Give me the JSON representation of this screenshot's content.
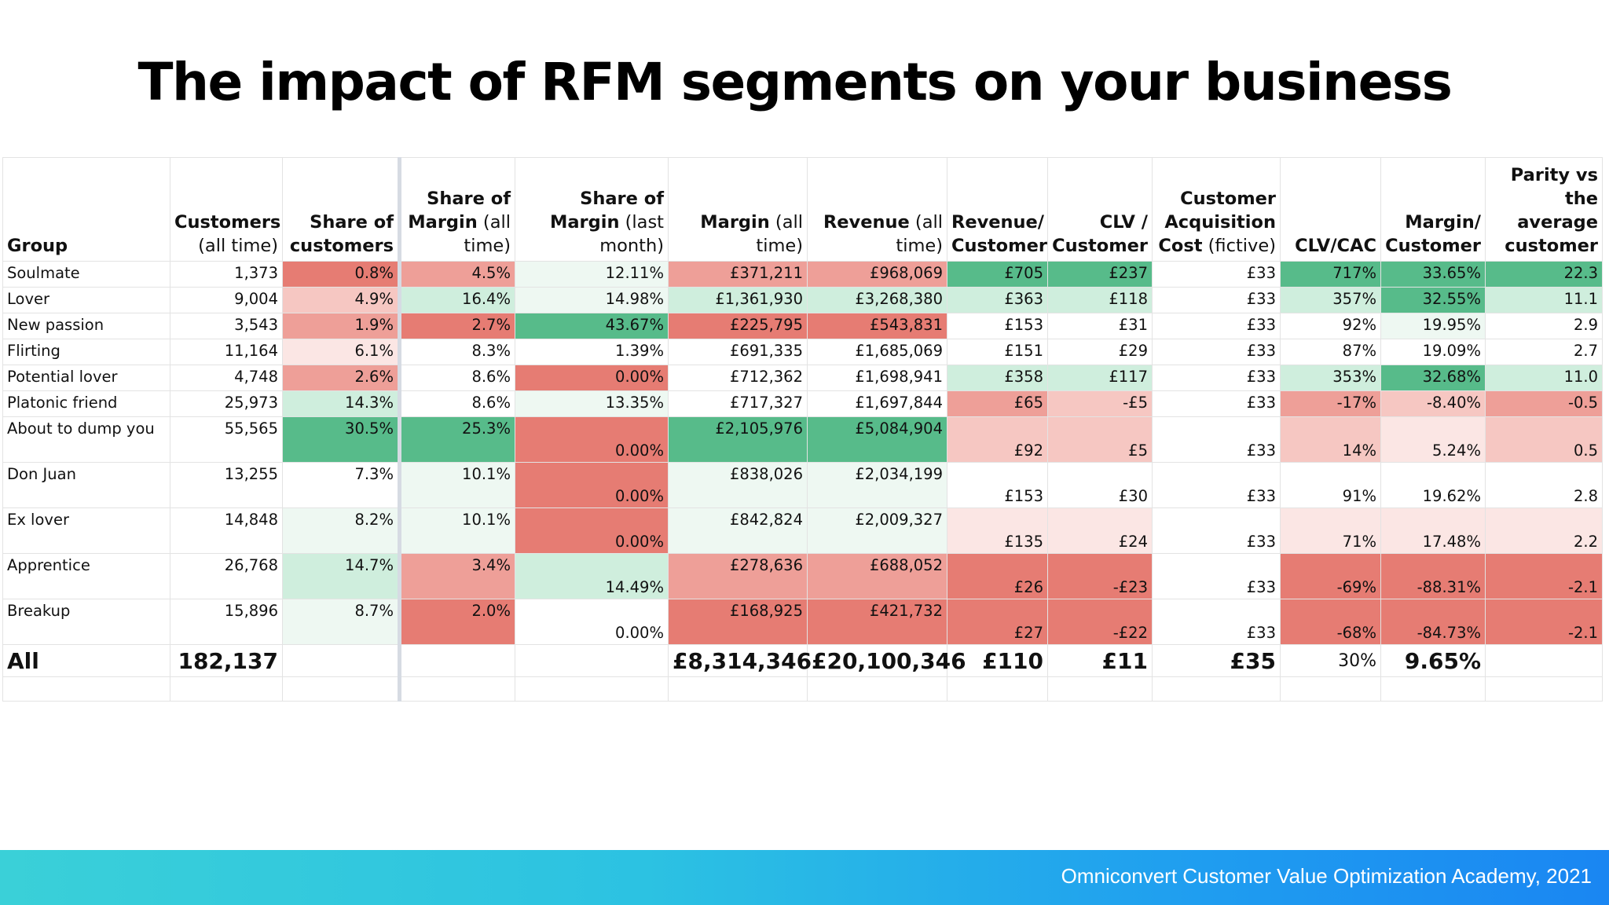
{
  "title": "The impact of RFM segments on your business",
  "footer": "Omniconvert Customer Value Optimization Academy, 2021",
  "palette": {
    "g3": "#57bb8a",
    "g2": "#98d6b4",
    "g1": "#cfeedd",
    "g0": "#eef8f2",
    "r3": "#e67c73",
    "r2": "#ee9f98",
    "r1": "#f6c7c2",
    "r0": "#fbe6e4",
    "w": "#ffffff"
  },
  "chart_data": {
    "type": "table",
    "title": "The impact of RFM segments on your business",
    "headers": [
      {
        "bold": "Group",
        "normal": ""
      },
      {
        "bold": "Customers",
        "normal": "(all time)"
      },
      {
        "bold": "Share of customers",
        "normal": ""
      },
      {
        "bold": "Share of Margin",
        "normal": "(all time)"
      },
      {
        "bold": "Share of Margin",
        "normal": "(last month)"
      },
      {
        "bold": "Margin",
        "normal": "(all time)"
      },
      {
        "bold": "Revenue",
        "normal": "(all time)"
      },
      {
        "bold": "Revenue/ Customer",
        "normal": ""
      },
      {
        "bold": "CLV / Customer",
        "normal": ""
      },
      {
        "bold": "Customer Acquisition Cost",
        "normal": "(fictive)"
      },
      {
        "bold": "CLV/CAC",
        "normal": ""
      },
      {
        "bold": "Margin/ Customer",
        "normal": ""
      },
      {
        "bold": "Parity vs the average customer",
        "normal": ""
      }
    ],
    "rows": [
      {
        "group": "Soulmate",
        "cells": [
          "1,373",
          "0.8%",
          "4.5%",
          "12.11%",
          "£371,211",
          "£968,069",
          "£705",
          "£237",
          "£33",
          "717%",
          "33.65%",
          "22.3"
        ]
      },
      {
        "group": "Lover",
        "cells": [
          "9,004",
          "4.9%",
          "16.4%",
          "14.98%",
          "£1,361,930",
          "£3,268,380",
          "£363",
          "£118",
          "£33",
          "357%",
          "32.55%",
          "11.1"
        ]
      },
      {
        "group": "New passion",
        "cells": [
          "3,543",
          "1.9%",
          "2.7%",
          "43.67%",
          "£225,795",
          "£543,831",
          "£153",
          "£31",
          "£33",
          "92%",
          "19.95%",
          "2.9"
        ]
      },
      {
        "group": "Flirting",
        "cells": [
          "11,164",
          "6.1%",
          "8.3%",
          "1.39%",
          "£691,335",
          "£1,685,069",
          "£151",
          "£29",
          "£33",
          "87%",
          "19.09%",
          "2.7"
        ]
      },
      {
        "group": "Potential lover",
        "cells": [
          "4,748",
          "2.6%",
          "8.6%",
          "0.00%",
          "£712,362",
          "£1,698,941",
          "£358",
          "£117",
          "£33",
          "353%",
          "32.68%",
          "11.0"
        ]
      },
      {
        "group": "Platonic friend",
        "cells": [
          "25,973",
          "14.3%",
          "8.6%",
          "13.35%",
          "£717,327",
          "£1,697,844",
          "£65",
          "-£5",
          "£33",
          "-17%",
          "-8.40%",
          "-0.5"
        ]
      },
      {
        "group": "About to dump you",
        "cells": [
          "55,565",
          "30.5%",
          "25.3%",
          "0.00%",
          "£2,105,976",
          "£5,084,904",
          "£92",
          "£5",
          "£33",
          "14%",
          "5.24%",
          "0.5"
        ]
      },
      {
        "group": "Don Juan",
        "cells": [
          "13,255",
          "7.3%",
          "10.1%",
          "0.00%",
          "£838,026",
          "£2,034,199",
          "£153",
          "£30",
          "£33",
          "91%",
          "19.62%",
          "2.8"
        ]
      },
      {
        "group": "Ex lover",
        "cells": [
          "14,848",
          "8.2%",
          "10.1%",
          "0.00%",
          "£842,824",
          "£2,009,327",
          "£135",
          "£24",
          "£33",
          "71%",
          "17.48%",
          "2.2"
        ]
      },
      {
        "group": "Apprentice",
        "cells": [
          "26,768",
          "14.7%",
          "3.4%",
          "14.49%",
          "£278,636",
          "£688,052",
          "£26",
          "-£23",
          "£33",
          "-69%",
          "-88.31%",
          "-2.1"
        ]
      },
      {
        "group": "Breakup",
        "cells": [
          "15,896",
          "8.7%",
          "2.0%",
          "0.00%",
          "£168,925",
          "£421,732",
          "£27",
          "-£22",
          "£33",
          "-68%",
          "-84.73%",
          "-2.1"
        ]
      }
    ],
    "total": {
      "group": "All",
      "cells": [
        "182,137",
        "",
        "",
        "",
        "£8,314,346",
        "£20,100,346",
        "£110",
        "£11",
        "£35",
        "30%",
        "9.65%",
        ""
      ]
    },
    "shading": [
      [
        "w",
        "r3",
        "r2",
        "g0",
        "r2",
        "r2",
        "g3",
        "g3",
        "w",
        "g3",
        "g3",
        "g3"
      ],
      [
        "w",
        "r1",
        "g1",
        "g0",
        "g1",
        "g1",
        "g1",
        "g1",
        "w",
        "g1",
        "g3",
        "g1"
      ],
      [
        "w",
        "r2",
        "r3",
        "g3",
        "r3",
        "r3",
        "w",
        "w",
        "w",
        "w",
        "g0",
        "w"
      ],
      [
        "w",
        "r0",
        "w",
        "w",
        "w",
        "w",
        "w",
        "w",
        "w",
        "w",
        "w",
        "w"
      ],
      [
        "w",
        "r2",
        "w",
        "r3",
        "w",
        "w",
        "g1",
        "g1",
        "w",
        "g1",
        "g3",
        "g1"
      ],
      [
        "w",
        "g1",
        "w",
        "g0",
        "w",
        "w",
        "r2",
        "r1",
        "w",
        "r2",
        "r1",
        "r2"
      ],
      [
        "w",
        "g3",
        "g3",
        "r3",
        "g3",
        "g3",
        "r1",
        "r1",
        "w",
        "r1",
        "r0",
        "r1"
      ],
      [
        "w",
        "w",
        "g0",
        "r3",
        "g0",
        "g0",
        "w",
        "w",
        "w",
        "w",
        "w",
        "w"
      ],
      [
        "w",
        "g0",
        "g0",
        "r3",
        "g0",
        "g0",
        "r0",
        "r0",
        "w",
        "r0",
        "r0",
        "r0"
      ],
      [
        "w",
        "g1",
        "r2",
        "g1",
        "r2",
        "r2",
        "r3",
        "r3",
        "w",
        "r3",
        "r3",
        "r3"
      ],
      [
        "w",
        "g0",
        "r3",
        "w",
        "r3",
        "r3",
        "r3",
        "r3",
        "w",
        "r3",
        "r3",
        "r3"
      ]
    ],
    "valign": [
      [
        "t",
        "t",
        "t",
        "t",
        "t",
        "t",
        "t",
        "t",
        "t",
        "t",
        "t",
        "t"
      ],
      [
        "t",
        "t",
        "t",
        "t",
        "t",
        "t",
        "t",
        "t",
        "t",
        "t",
        "t",
        "t"
      ],
      [
        "t",
        "t",
        "t",
        "t",
        "t",
        "t",
        "t",
        "t",
        "t",
        "t",
        "t",
        "t"
      ],
      [
        "t",
        "t",
        "t",
        "t",
        "t",
        "t",
        "t",
        "t",
        "t",
        "t",
        "t",
        "t"
      ],
      [
        "t",
        "t",
        "t",
        "t",
        "t",
        "t",
        "t",
        "t",
        "t",
        "t",
        "t",
        "t"
      ],
      [
        "t",
        "t",
        "t",
        "t",
        "t",
        "t",
        "t",
        "t",
        "t",
        "t",
        "t",
        "t"
      ],
      [
        "t",
        "t",
        "t",
        "b",
        "t",
        "t",
        "b",
        "b",
        "b",
        "b",
        "b",
        "b"
      ],
      [
        "t",
        "t",
        "t",
        "b",
        "t",
        "t",
        "b",
        "b",
        "b",
        "b",
        "b",
        "b"
      ],
      [
        "t",
        "t",
        "t",
        "b",
        "t",
        "t",
        "b",
        "b",
        "b",
        "b",
        "b",
        "b"
      ],
      [
        "t",
        "t",
        "t",
        "b",
        "t",
        "t",
        "b",
        "b",
        "b",
        "b",
        "b",
        "b"
      ],
      [
        "t",
        "t",
        "t",
        "b",
        "t",
        "t",
        "b",
        "b",
        "b",
        "b",
        "b",
        "b"
      ]
    ]
  }
}
